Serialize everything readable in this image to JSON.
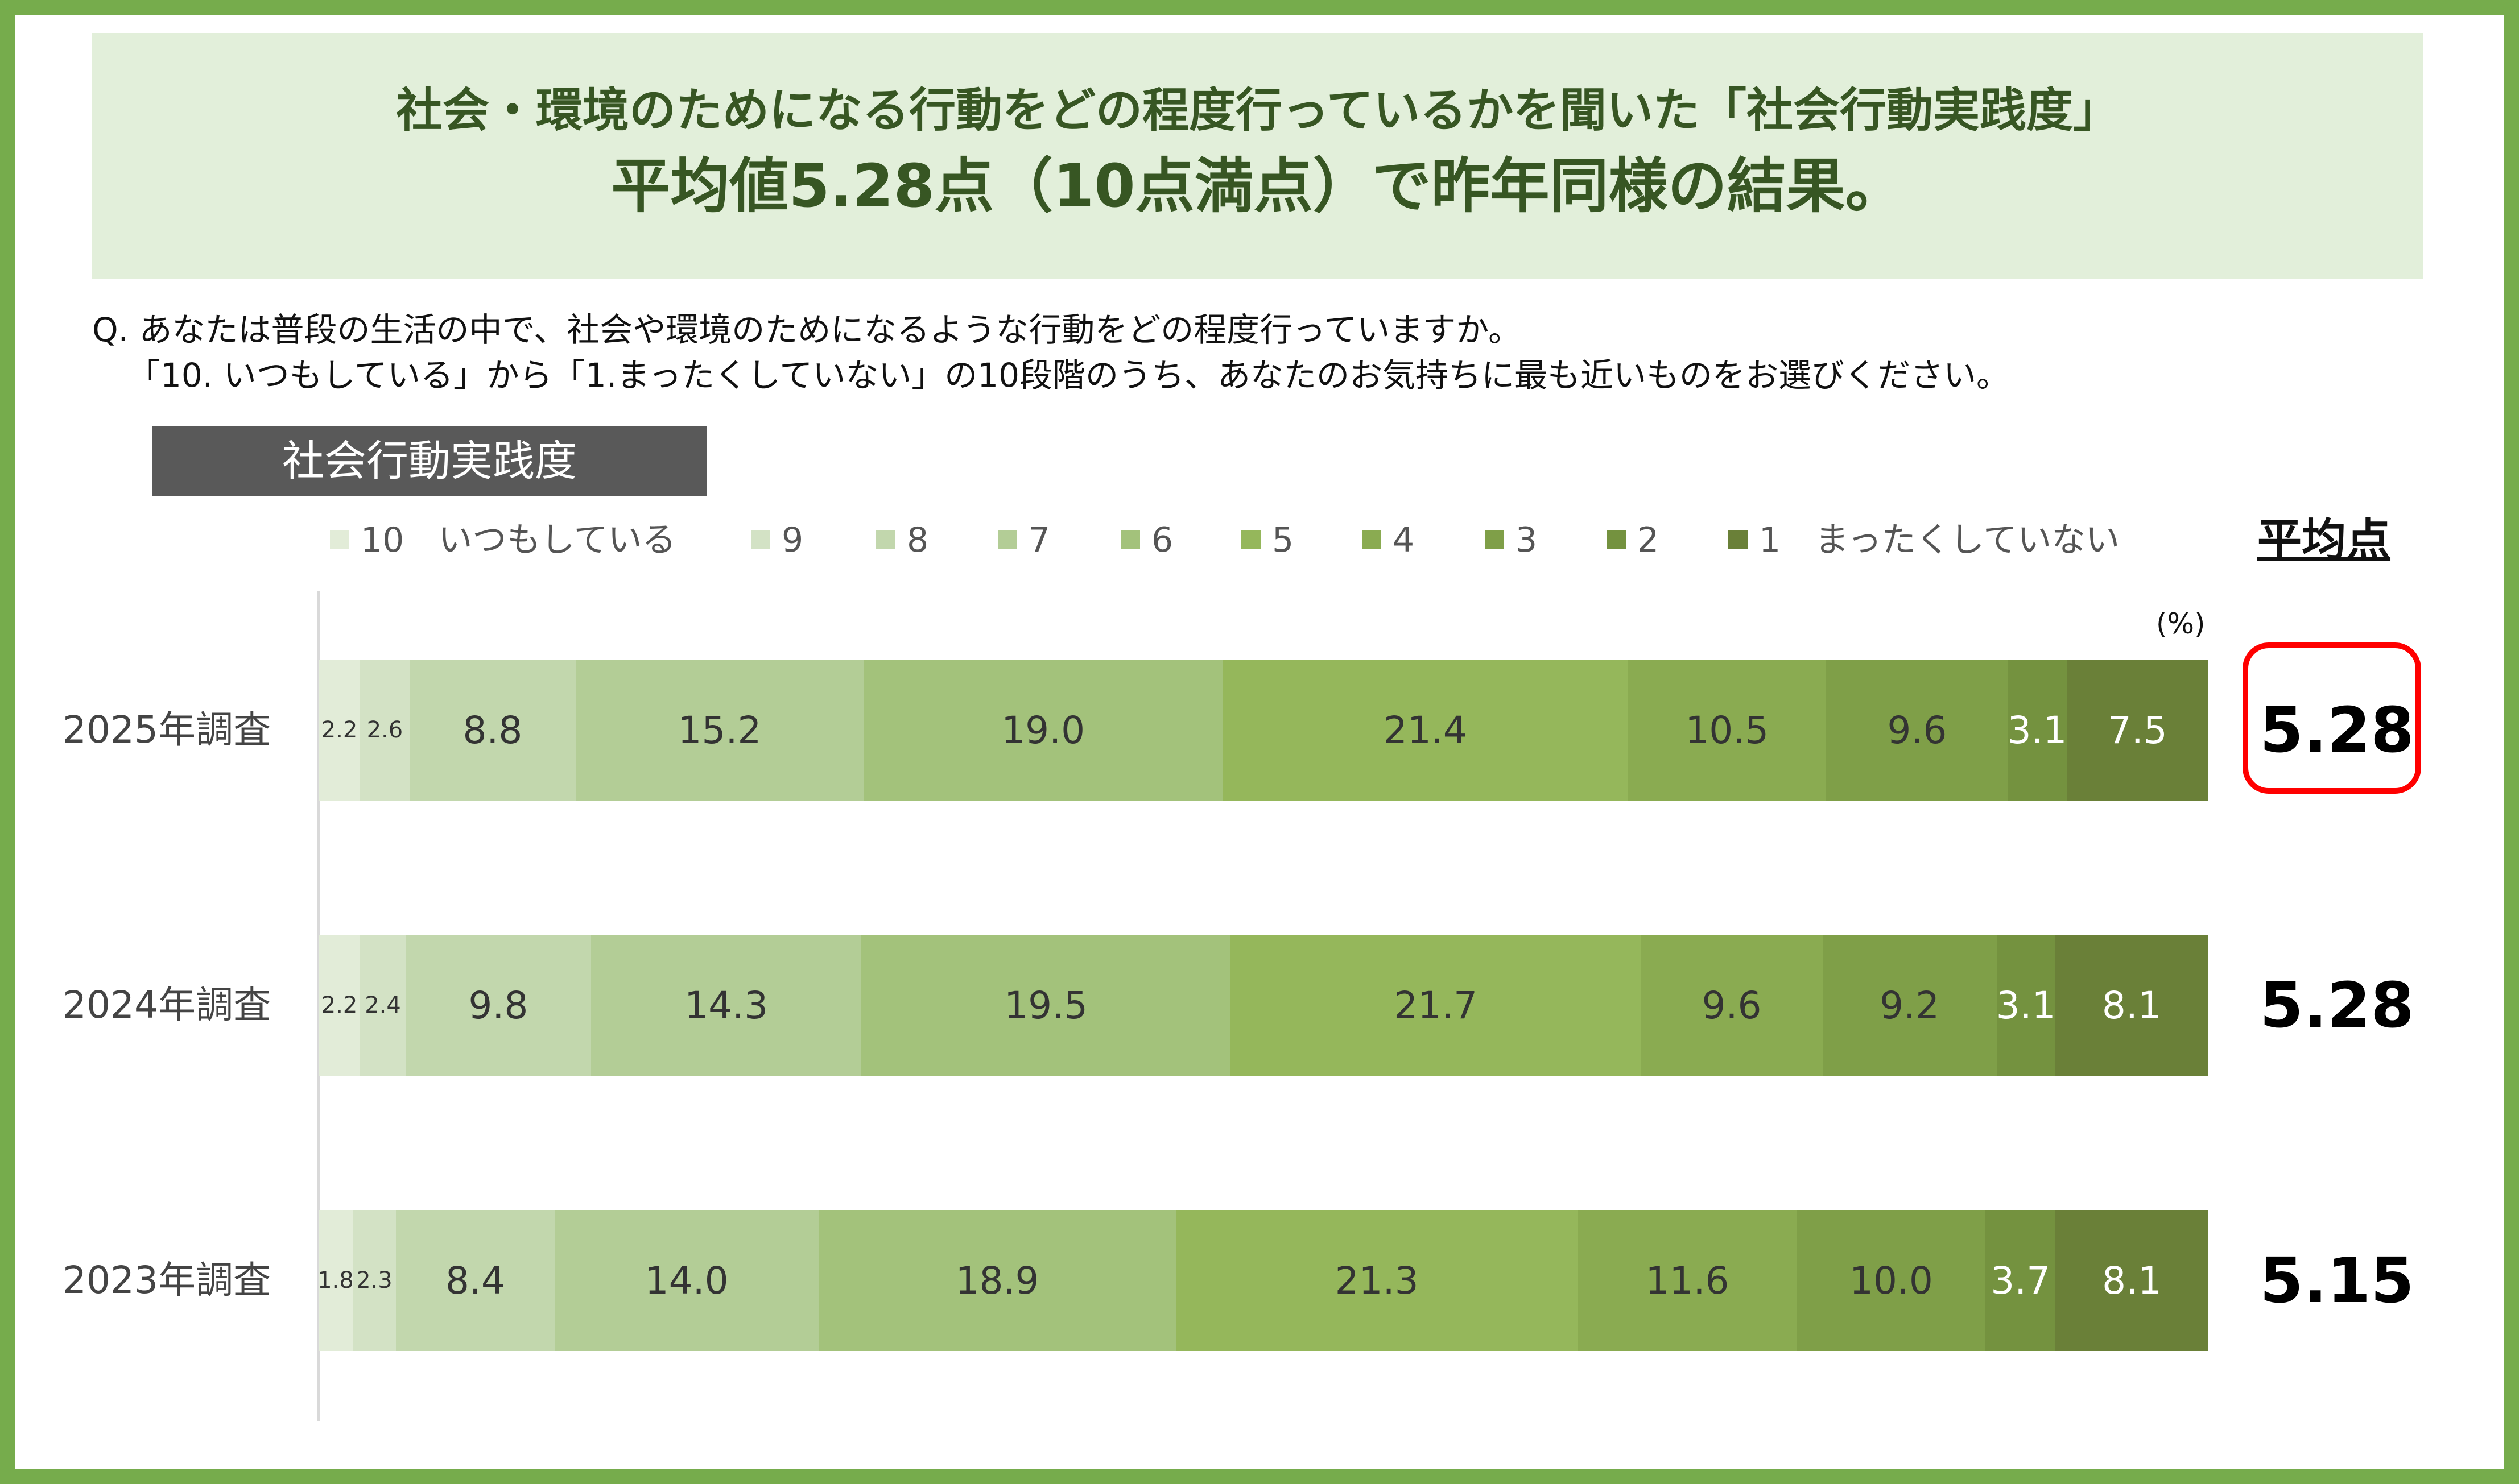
{
  "header": {
    "title_line1": "社会・環境のためになる行動をどの程度行っているかを聞いた「社会行動実践度」",
    "title_line2": "平均値5.28点（10点満点）で昨年同様の結果。"
  },
  "question": {
    "line1": "Q.  あなたは普段の生活の中で、社会や環境のためになるような行動をどの程度行っていますか。",
    "line2": "「10. いつもしている」から「1.まったくしていない」の10段階のうち、あなたのお気持ちに最も近いものをお選びください。"
  },
  "section_label": "社会行動実践度",
  "avg_header": "平均点",
  "unit_label": "(%)",
  "colors": {
    "frame": "#76ac4c",
    "header_bg": "#e2efda",
    "title_text": "#375623",
    "highlight": "#ff0000",
    "segments": [
      "#e2ecd8",
      "#d3e2c5",
      "#c2d7ad",
      "#b3cd96",
      "#a3c27b",
      "#95b75b",
      "#8aab51",
      "#7f9f48",
      "#74923f",
      "#6a8038"
    ]
  },
  "chart_data": {
    "type": "bar",
    "orientation": "horizontal-stacked-100",
    "categories": [
      "2025年調査",
      "2024年調査",
      "2023年調査"
    ],
    "legend": [
      "10　いつもしている",
      "9",
      "8",
      "7",
      "6",
      "5",
      "4",
      "3",
      "2",
      "1　まったくしていない"
    ],
    "series": [
      {
        "name": "10　いつもしている",
        "values": [
          2.2,
          2.2,
          1.8
        ]
      },
      {
        "name": "9",
        "values": [
          2.6,
          2.4,
          2.3
        ]
      },
      {
        "name": "8",
        "values": [
          8.8,
          9.8,
          8.4
        ]
      },
      {
        "name": "7",
        "values": [
          15.2,
          14.3,
          14.0
        ]
      },
      {
        "name": "6",
        "values": [
          19.0,
          19.5,
          18.9
        ]
      },
      {
        "name": "5",
        "values": [
          21.4,
          21.7,
          21.3
        ]
      },
      {
        "name": "4",
        "values": [
          10.5,
          9.6,
          11.6
        ]
      },
      {
        "name": "3",
        "values": [
          9.6,
          9.2,
          10.0
        ]
      },
      {
        "name": "2",
        "values": [
          3.1,
          3.1,
          3.7
        ]
      },
      {
        "name": "1　まったくしていない",
        "values": [
          7.5,
          8.1,
          8.1
        ]
      }
    ],
    "data_labels": [
      [
        "2.2",
        "2.6",
        "8.8",
        "15.2",
        "19.0",
        "21.4",
        "10.5",
        "9.6",
        "3.1",
        "7.5"
      ],
      [
        "2.2",
        "2.4",
        "9.8",
        "14.3",
        "19.5",
        "21.7",
        "9.6",
        "9.2",
        "3.1",
        "8.1"
      ],
      [
        "1.8",
        "2.3",
        "8.4",
        "14.0",
        "18.9",
        "21.3",
        "11.6",
        "10.0",
        "3.7",
        "8.1"
      ]
    ],
    "averages": [
      "5.28",
      "5.28",
      "5.15"
    ],
    "highlighted_average_index": 0,
    "unit": "(%)"
  }
}
